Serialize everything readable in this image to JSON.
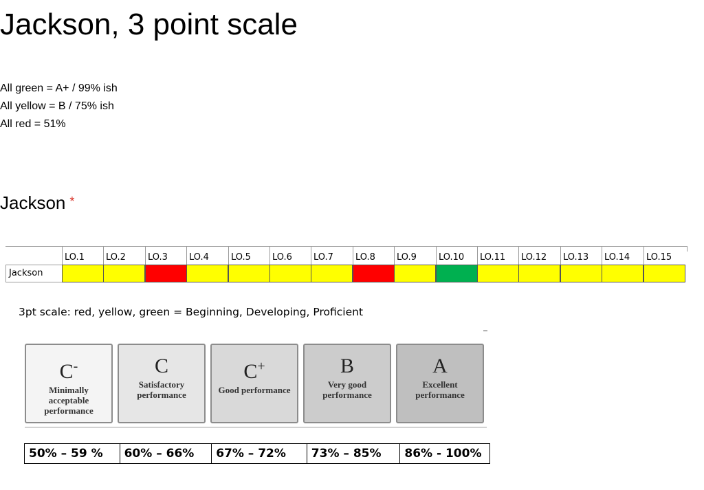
{
  "page": {
    "title": "Jackson, 3 point scale",
    "notes": [
      "All green = A+ / 99% ish",
      "All yellow = B / 75% ish",
      "All red = 51%"
    ],
    "question": {
      "label": "Jackson",
      "required_marker": "*"
    }
  },
  "grid": {
    "row_label": "Jackson",
    "columns": [
      "LO.1",
      "LO.2",
      "LO.3",
      "LO.4",
      "LO.5",
      "LO.6",
      "LO.7",
      "LO.8",
      "LO.9",
      "LO.10",
      "LO.11",
      "LO.12",
      "LO.13",
      "LO.14",
      "LO.15"
    ],
    "ratings": [
      "yellow",
      "yellow",
      "red",
      "yellow",
      "yellow",
      "yellow",
      "yellow",
      "red",
      "yellow",
      "green",
      "yellow",
      "yellow",
      "yellow",
      "yellow",
      "yellow"
    ],
    "colors": {
      "yellow": "#ffff00",
      "red": "#ff0000",
      "green": "#00b050"
    }
  },
  "scale_caption": "3pt scale: red, yellow, green = Beginning, Developing, Proficient",
  "grades": [
    {
      "letter": "C",
      "sup": "-",
      "desc": "Minimally acceptable performance",
      "bg": "#f4f4f4",
      "range": "50% – 59 %"
    },
    {
      "letter": "C",
      "sup": "",
      "desc": "Satisfactory performance",
      "bg": "#e6e6e6",
      "range": "60% – 66%"
    },
    {
      "letter": "C",
      "sup": "+",
      "desc": "Good performance",
      "bg": "#d9d9d9",
      "range": "67% – 72%"
    },
    {
      "letter": "B",
      "sup": "",
      "desc": "Very good performance",
      "bg": "#cccccc",
      "range": "73% – 85%"
    },
    {
      "letter": "A",
      "sup": "",
      "desc": "Excellent performance",
      "bg": "#bfbfbf",
      "range": "86% - 100%"
    }
  ]
}
